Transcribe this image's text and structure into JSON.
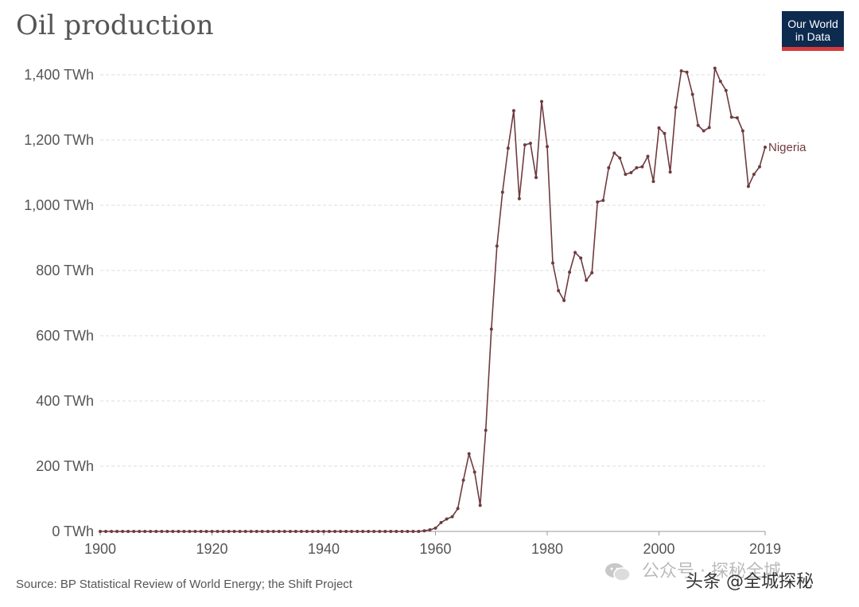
{
  "title": "Oil production",
  "logo": {
    "line1": "Our World",
    "line2": "in Data"
  },
  "source": "Source: BP Statistical Review of World Energy; the Shift Project",
  "watermark": {
    "faded_text": "公众号 · 探秘全城",
    "main_text": "头条 @全城探秘"
  },
  "colors": {
    "line": "#6f3b3f",
    "grid": "#dddddd",
    "axis_text": "#555555",
    "logo_bg": "#0d2a4f",
    "logo_accent": "#d73a3a"
  },
  "chart_data": {
    "type": "line",
    "title": "Oil production",
    "xlabel": "",
    "ylabel": "",
    "xlim": [
      1900,
      2019
    ],
    "ylim": [
      0,
      1400
    ],
    "x_ticks": [
      1900,
      1920,
      1940,
      1960,
      1980,
      2000,
      2019
    ],
    "y_ticks": [
      {
        "value": 0,
        "label": "0 TWh"
      },
      {
        "value": 200,
        "label": "200 TWh"
      },
      {
        "value": 400,
        "label": "400 TWh"
      },
      {
        "value": 600,
        "label": "600 TWh"
      },
      {
        "value": 800,
        "label": "800 TWh"
      },
      {
        "value": 1000,
        "label": "1,000 TWh"
      },
      {
        "value": 1200,
        "label": "1,200 TWh"
      },
      {
        "value": 1400,
        "label": "1,400 TWh"
      }
    ],
    "grid": "horizontal dashed",
    "series": [
      {
        "name": "Nigeria",
        "x": [
          1900,
          1901,
          1902,
          1903,
          1904,
          1905,
          1906,
          1907,
          1908,
          1909,
          1910,
          1911,
          1912,
          1913,
          1914,
          1915,
          1916,
          1917,
          1918,
          1919,
          1920,
          1921,
          1922,
          1923,
          1924,
          1925,
          1926,
          1927,
          1928,
          1929,
          1930,
          1931,
          1932,
          1933,
          1934,
          1935,
          1936,
          1937,
          1938,
          1939,
          1940,
          1941,
          1942,
          1943,
          1944,
          1945,
          1946,
          1947,
          1948,
          1949,
          1950,
          1951,
          1952,
          1953,
          1954,
          1955,
          1956,
          1957,
          1958,
          1959,
          1960,
          1961,
          1962,
          1963,
          1964,
          1965,
          1966,
          1967,
          1968,
          1969,
          1970,
          1971,
          1972,
          1973,
          1974,
          1975,
          1976,
          1977,
          1978,
          1979,
          1980,
          1981,
          1982,
          1983,
          1984,
          1985,
          1986,
          1987,
          1988,
          1989,
          1990,
          1991,
          1992,
          1993,
          1994,
          1995,
          1996,
          1997,
          1998,
          1999,
          2000,
          2001,
          2002,
          2003,
          2004,
          2005,
          2006,
          2007,
          2008,
          2009,
          2010,
          2011,
          2012,
          2013,
          2014,
          2015,
          2016,
          2017,
          2018,
          2019
        ],
        "y": [
          0,
          0,
          0,
          0,
          0,
          0,
          0,
          0,
          0,
          0,
          0,
          0,
          0,
          0,
          0,
          0,
          0,
          0,
          0,
          0,
          0,
          0,
          0,
          0,
          0,
          0,
          0,
          0,
          0,
          0,
          0,
          0,
          0,
          0,
          0,
          0,
          0,
          0,
          0,
          0,
          0,
          0,
          0,
          0,
          0,
          0,
          0,
          0,
          0,
          0,
          0,
          0,
          0,
          0,
          0,
          0,
          0,
          0,
          2,
          5,
          10,
          27,
          38,
          45,
          70,
          157,
          238,
          182,
          80,
          310,
          620,
          875,
          1040,
          1175,
          1290,
          1020,
          1185,
          1190,
          1085,
          1318,
          1180,
          823,
          738,
          708,
          795,
          855,
          838,
          770,
          793,
          1010,
          1015,
          1115,
          1160,
          1145,
          1095,
          1100,
          1115,
          1118,
          1150,
          1073,
          1237,
          1220,
          1102,
          1300,
          1412,
          1408,
          1340,
          1245,
          1228,
          1238,
          1420,
          1380,
          1352,
          1270,
          1268,
          1228,
          1058,
          1095,
          1118,
          1178
        ]
      }
    ]
  }
}
